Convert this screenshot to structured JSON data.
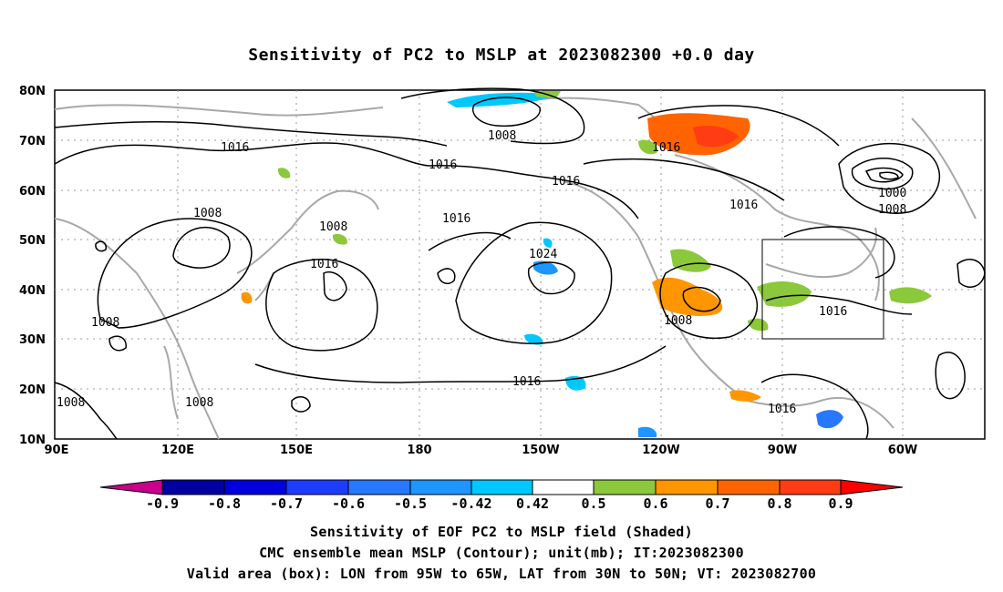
{
  "title": "Sensitivity of PC2 to MSLP at 2023082300 +0.0 day",
  "map": {
    "lat_labels": [
      "80N",
      "70N",
      "60N",
      "50N",
      "40N",
      "30N",
      "20N",
      "10N"
    ],
    "lon_labels": [
      "90E",
      "120E",
      "150E",
      "180",
      "150W",
      "120W",
      "90W",
      "60W"
    ],
    "contour_labels": [
      {
        "text": "1016"
      },
      {
        "text": "1008"
      },
      {
        "text": "1016"
      },
      {
        "text": "1016"
      },
      {
        "text": "1016"
      },
      {
        "text": "1016"
      },
      {
        "text": "1016"
      },
      {
        "text": "1000"
      },
      {
        "text": "1008"
      },
      {
        "text": "1008"
      },
      {
        "text": "1008"
      },
      {
        "text": "1024"
      },
      {
        "text": "1016"
      },
      {
        "text": "1008"
      },
      {
        "text": "1016"
      },
      {
        "text": "1008"
      },
      {
        "text": "1008"
      },
      {
        "text": "1008"
      },
      {
        "text": "1016"
      },
      {
        "text": "1016"
      }
    ],
    "valid_box": {
      "lon_from": "95W",
      "lon_to": "65W",
      "lat_from": "30N",
      "lat_to": "50N"
    }
  },
  "colorbar": {
    "labels": [
      "-0.9",
      "-0.8",
      "-0.7",
      "-0.6",
      "-0.5",
      "-0.42",
      "0.42",
      "0.5",
      "0.6",
      "0.7",
      "0.8",
      "0.9"
    ],
    "colors": [
      "#c8008c",
      "#0000a0",
      "#0000dc",
      "#1e3cff",
      "#2878ff",
      "#1e96ff",
      "#00c8ff",
      "#ffffff",
      "#8cc83c",
      "#ff9600",
      "#ff6400",
      "#ff3c14",
      "#ff0000",
      "#ff96c8"
    ]
  },
  "captions": {
    "line1": "Sensitivity of EOF PC2 to MSLP field (Shaded)",
    "line2": "CMC ensemble mean MSLP (Contour); unit(mb); IT:2023082300",
    "line3": "Valid area (box): LON from 95W to 65W, LAT from 30N to 50N; VT: 2023082700"
  }
}
